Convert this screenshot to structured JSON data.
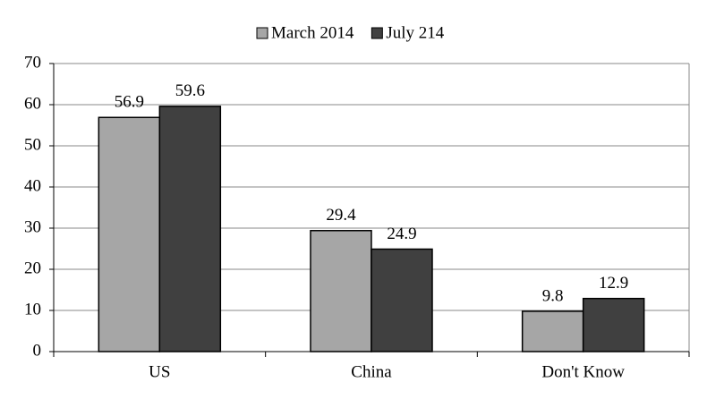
{
  "chart_data": {
    "type": "bar",
    "categories": [
      "US",
      "China",
      "Don't Know"
    ],
    "series": [
      {
        "name": "March 2014",
        "color": "#a6a6a6",
        "values": [
          56.9,
          29.4,
          9.8
        ]
      },
      {
        "name": "July 214",
        "color": "#404040",
        "values": [
          59.6,
          24.9,
          12.9
        ]
      }
    ],
    "ylim": [
      0,
      70
    ],
    "yticks": [
      0,
      10,
      20,
      30,
      40,
      50,
      60,
      70
    ],
    "grid": true,
    "legend": "top"
  }
}
